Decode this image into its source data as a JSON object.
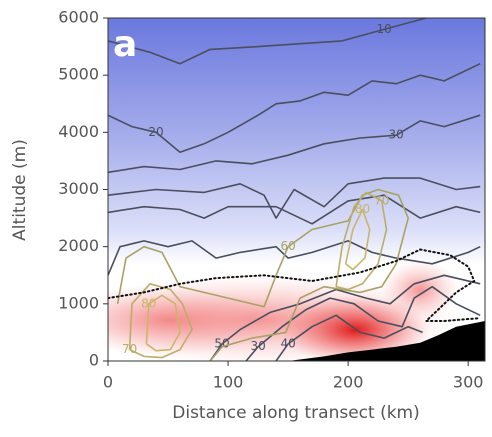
{
  "chart_data": {
    "type": "contour",
    "panel_label": "a",
    "x_label": "Distance along transect (km)",
    "y_label": "Altitude (m)",
    "xlim": [
      0,
      314
    ],
    "ylim": [
      0,
      6000
    ],
    "xticks": [
      0,
      100,
      200,
      300
    ],
    "yticks": [
      0,
      1000,
      2000,
      3000,
      4000,
      5000,
      6000
    ],
    "contours": [
      {
        "level": 10,
        "color": "#4a4f5e",
        "x": [
          0,
          35,
          60,
          85,
          125,
          160,
          195,
          230,
          265
        ],
        "y": [
          5600,
          5400,
          5200,
          5450,
          5500,
          5550,
          5600,
          5800,
          6000
        ]
      },
      {
        "level": 20,
        "color": "#4a4f5e",
        "x": [
          0,
          20,
          40,
          60,
          80,
          100,
          125,
          140,
          160,
          180,
          200,
          220,
          240,
          260,
          280,
          310
        ],
        "y": [
          4300,
          4100,
          4000,
          3650,
          3800,
          4000,
          4300,
          4500,
          4550,
          4700,
          4650,
          4900,
          4850,
          5000,
          4900,
          5200
        ]
      },
      {
        "level": 30,
        "color": "#4a4f5e",
        "x": [
          0,
          30,
          60,
          90,
          120,
          150,
          180,
          210,
          240,
          260,
          280,
          310
        ],
        "y": [
          3300,
          3400,
          3350,
          3500,
          3450,
          3600,
          3800,
          3900,
          3950,
          4200,
          4100,
          4300
        ]
      },
      {
        "color": "#4a4f5e",
        "x": [
          0,
          40,
          80,
          110,
          130,
          140,
          155,
          180,
          200,
          230,
          260,
          290,
          310
        ],
        "y": [
          2900,
          3000,
          2950,
          3100,
          2900,
          2500,
          3000,
          2700,
          3100,
          3200,
          3200,
          3000,
          3050
        ]
      },
      {
        "color": "#4a4f5e",
        "x": [
          0,
          30,
          60,
          80,
          100,
          140,
          170,
          200,
          230,
          260,
          290,
          310
        ],
        "y": [
          2600,
          2700,
          2650,
          2500,
          2700,
          2700,
          2400,
          2800,
          2900,
          2500,
          2700,
          2600
        ]
      },
      {
        "color": "#4a4f5e",
        "x": [
          0,
          10,
          30,
          50,
          70,
          90,
          110,
          140,
          150,
          170,
          200,
          220,
          240,
          270,
          300,
          310
        ],
        "y": [
          1500,
          2000,
          2100,
          2000,
          2100,
          1800,
          1900,
          2000,
          1800,
          1900,
          2100,
          1900,
          1800,
          1700,
          1900,
          2000
        ]
      },
      {
        "level": 50,
        "color": "#4a4f5e",
        "x": [
          85,
          95,
          110,
          135,
          160,
          190,
          215,
          235,
          255,
          280,
          310
        ],
        "y": [
          0,
          300,
          550,
          850,
          1000,
          1250,
          1100,
          1000,
          1350,
          1500,
          1350
        ]
      },
      {
        "level": 30,
        "color": "#4a4f5e",
        "x": [
          115,
          125,
          145,
          165,
          185,
          205,
          225,
          245,
          255,
          270,
          290,
          310
        ],
        "y": [
          0,
          250,
          600,
          900,
          1100,
          1000,
          700,
          600,
          1100,
          1300,
          1000,
          800
        ]
      },
      {
        "level": 40,
        "color": "#4a4f5e",
        "x": [
          140,
          150,
          170,
          190,
          210,
          230,
          250,
          262
        ],
        "y": [
          0,
          300,
          600,
          800,
          500,
          400,
          600,
          500
        ]
      },
      {
        "level": 60,
        "color": "#a9a266",
        "x": [
          8,
          15,
          30,
          45,
          60,
          80,
          100,
          130,
          140,
          150,
          170,
          200,
          212,
          225,
          242,
          250,
          240,
          228,
          210,
          180,
          160,
          148,
          120,
          95,
          85
        ],
        "y": [
          1000,
          1800,
          2000,
          1900,
          1300,
          1200,
          1100,
          950,
          1500,
          2000,
          2300,
          2450,
          2900,
          3000,
          2900,
          2500,
          1700,
          1300,
          1200,
          1300,
          1100,
          500,
          400,
          250,
          0
        ]
      },
      {
        "level": 70,
        "color": "#b9ae6a",
        "x": [
          18,
          20,
          35,
          52,
          62,
          70,
          60,
          45,
          30,
          18
        ],
        "y": [
          200,
          1000,
          1350,
          1250,
          1000,
          550,
          200,
          60,
          80,
          200
        ]
      },
      {
        "level": 70,
        "color": "#b9ae6a",
        "x": [
          190,
          195,
          205,
          215,
          228,
          232,
          225,
          212,
          200,
          190
        ],
        "y": [
          1300,
          2000,
          2700,
          2950,
          2800,
          2300,
          1700,
          1350,
          1250,
          1300
        ]
      },
      {
        "level": 80,
        "color": "#c9b66a",
        "x": [
          32,
          34,
          45,
          56,
          60,
          52,
          40,
          32
        ],
        "y": [
          300,
          1000,
          1150,
          1000,
          500,
          200,
          180,
          300
        ]
      },
      {
        "level": 80,
        "color": "#c9b66a",
        "x": [
          198,
          204,
          212,
          218,
          214,
          204,
          198
        ],
        "y": [
          1700,
          2300,
          2650,
          2300,
          1800,
          1600,
          1700
        ]
      }
    ],
    "boundary": {
      "color": "#111111",
      "x": [
        0,
        30,
        60,
        90,
        130,
        170,
        210,
        240,
        260,
        285,
        300,
        305,
        290,
        275,
        265,
        280,
        310
      ],
      "y": [
        1100,
        1200,
        1350,
        1450,
        1500,
        1400,
        1550,
        1750,
        1950,
        1850,
        1650,
        1400,
        1200,
        900,
        700,
        700,
        750
      ]
    },
    "terrain": {
      "color": "#000000",
      "x": [
        150,
        180,
        200,
        220,
        240,
        260,
        275,
        290,
        314
      ],
      "y": [
        0,
        80,
        150,
        200,
        250,
        320,
        450,
        600,
        700
      ]
    }
  }
}
